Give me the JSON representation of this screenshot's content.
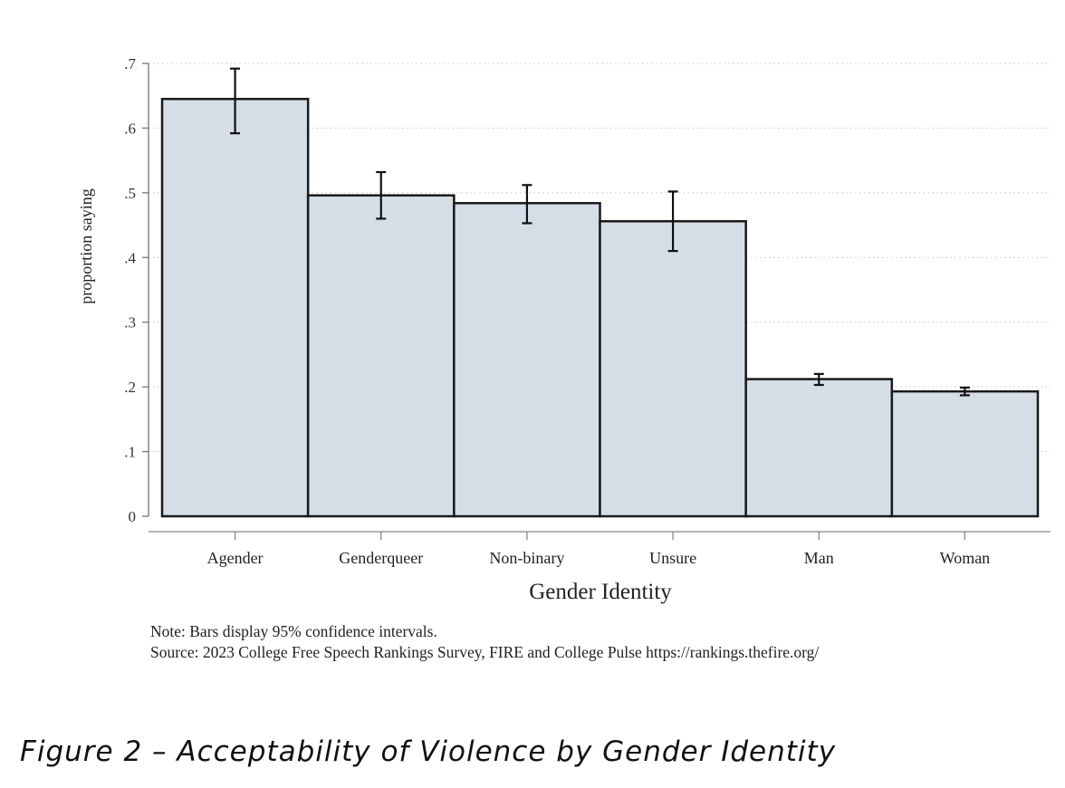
{
  "chart_data": {
    "type": "bar",
    "title": "",
    "xlabel": "Gender Identity",
    "ylabel": "proportion saying",
    "categories": [
      "Agender",
      "Genderqueer",
      "Non-binary",
      "Unsure",
      "Man",
      "Woman"
    ],
    "values": [
      0.645,
      0.496,
      0.484,
      0.456,
      0.212,
      0.193
    ],
    "ci_lower": [
      0.592,
      0.46,
      0.453,
      0.41,
      0.203,
      0.187
    ],
    "ci_upper": [
      0.692,
      0.532,
      0.512,
      0.502,
      0.22,
      0.199
    ],
    "ylim": [
      0,
      0.7
    ],
    "yticks": [
      0,
      0.1,
      0.2,
      0.3,
      0.4,
      0.5,
      0.6,
      0.7
    ],
    "ytick_labels": [
      "0",
      ".1",
      ".2",
      ".3",
      ".4",
      ".5",
      ".6",
      ".7"
    ],
    "grid": true,
    "bar_color": "#d5dde6",
    "bar_edge_color": "#1a1a1a"
  },
  "notes": {
    "line1": "Note: Bars display 95% confidence intervals.",
    "line2": "Source: 2023 College Free Speech Rankings Survey, FIRE and College Pulse https://rankings.thefire.org/"
  },
  "caption": "Figure 2 – Acceptability of Violence by Gender Identity"
}
